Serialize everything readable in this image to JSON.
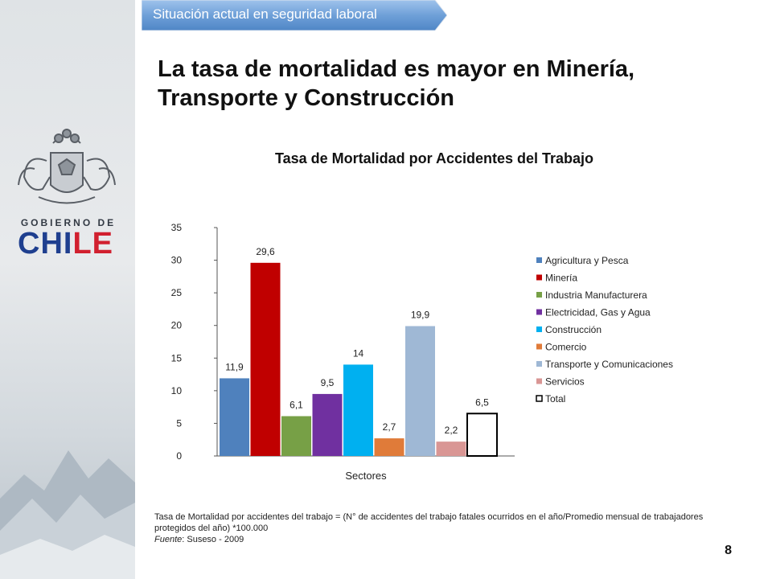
{
  "header_tab": {
    "label": "Situación actual en seguridad laboral"
  },
  "title": "La tasa de mortalidad es mayor en Minería, Transporte y Construcción",
  "logo": {
    "line1": "GOBIERNO DE",
    "line2": "CHILE"
  },
  "colors": {
    "tab": "#6fa0d8",
    "sidebar": "#dfe3e6"
  },
  "chart_data": {
    "type": "bar",
    "title": "Tasa de Mortalidad por Accidentes del Trabajo",
    "xlabel": "Sectores",
    "ylabel": "",
    "ylim": [
      0,
      35
    ],
    "yticks": [
      0,
      5,
      10,
      15,
      20,
      25,
      30,
      35
    ],
    "grid": false,
    "legend_position": "right",
    "series": [
      {
        "name": "Agricultura y Pesca",
        "value": 11.9,
        "label": "11,9",
        "color": "#4f81bd"
      },
      {
        "name": "Minería",
        "value": 29.6,
        "label": "29,6",
        "color": "#c00000"
      },
      {
        "name": "Industria Manufacturera",
        "value": 6.1,
        "label": "6,1",
        "color": "#77a046"
      },
      {
        "name": "Electricidad, Gas y Agua",
        "value": 9.5,
        "label": "9,5",
        "color": "#7030a0"
      },
      {
        "name": "Construcción",
        "value": 14,
        "label": "14",
        "color": "#00b0f0"
      },
      {
        "name": "Comercio",
        "value": 2.7,
        "label": "2,7",
        "color": "#e07b39"
      },
      {
        "name": "Transporte y Comunicaciones",
        "value": 19.9,
        "label": "19,9",
        "color": "#9fb8d5"
      },
      {
        "name": "Servicios",
        "value": 2.2,
        "label": "2,2",
        "color": "#d99694"
      },
      {
        "name": "Total",
        "value": 6.5,
        "label": "6,5",
        "color": "#ffffff"
      }
    ]
  },
  "footnote": {
    "formula": "Tasa de Mortalidad por accidentes del trabajo = (N° de accidentes del trabajo fatales ocurridos en el año/Promedio mensual de trabajadores protegidos del año) *100.000",
    "source_label": "Fuente",
    "source_text": ": Suseso - 2009"
  },
  "page_number": "8"
}
